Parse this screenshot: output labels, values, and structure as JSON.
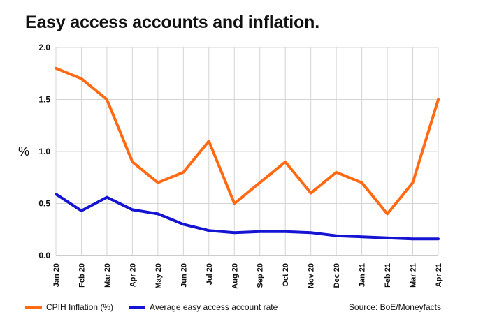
{
  "chart_data": {
    "type": "line",
    "title": "Easy access accounts and inflation.",
    "ylabel": "%",
    "xlabel": "",
    "ylim": [
      0,
      2.0
    ],
    "yticks": [
      "0.0",
      "0.5",
      "1.0",
      "1.5",
      "2.0"
    ],
    "grid": true,
    "legend_position": "bottom-left",
    "categories": [
      "Jan 20",
      "Feb 20",
      "Mar 20",
      "Apr 20",
      "May 20",
      "Jun 20",
      "Jul 20",
      "Aug 20",
      "Sep 20",
      "Oct 20",
      "Nov 20",
      "Dec 20",
      "Jan 21",
      "Feb 21",
      "Mar 21",
      "Apr 21"
    ],
    "series": [
      {
        "name": "CPIH Inflation (%)",
        "color": "#ff6a13",
        "values": [
          1.8,
          1.7,
          1.5,
          0.9,
          0.7,
          0.8,
          1.1,
          0.5,
          0.7,
          0.9,
          0.6,
          0.8,
          0.7,
          0.4,
          0.7,
          1.5
        ]
      },
      {
        "name": "Average easy access account rate",
        "color": "#1414d2",
        "values": [
          0.59,
          0.43,
          0.56,
          0.44,
          0.4,
          0.3,
          0.24,
          0.22,
          0.23,
          0.23,
          0.22,
          0.19,
          0.18,
          0.17,
          0.16,
          0.16
        ]
      }
    ],
    "source": "Source: BoE/Moneyfacts"
  }
}
